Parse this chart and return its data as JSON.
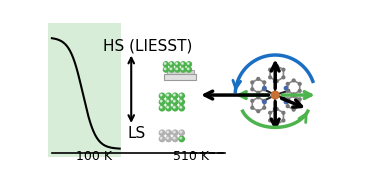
{
  "background_color": "#ffffff",
  "panel_left_bg": "#d8edd8",
  "curve_color": "#000000",
  "axis_color": "#000000",
  "label_100K": "100 K",
  "label_510K": "510 K",
  "label_HS": "HS (LIESST)",
  "label_LS": "LS",
  "arrow_color": "#000000",
  "green_ball_color": "#4db34d",
  "gray_ball_color": "#b0b0b0",
  "blue_arrow_color": "#1a6fc4",
  "green_arrow_color": "#4db34d",
  "figsize": [
    3.77,
    1.89
  ],
  "dpi": 100
}
